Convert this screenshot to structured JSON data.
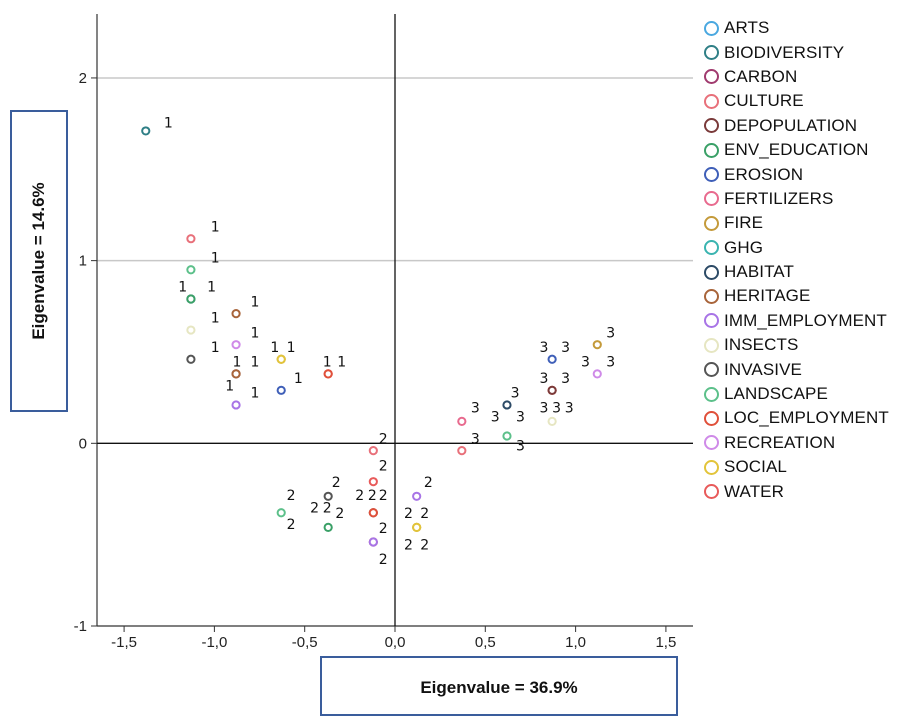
{
  "chart_data": {
    "type": "scatter",
    "xlabel": "Eigenvalue = 36.9%",
    "ylabel": "Eigenvalue = 14.6%",
    "xlim": [
      -1.65,
      1.65
    ],
    "ylim": [
      -1.0,
      2.35
    ],
    "x_ticks": [
      "-1,5",
      "-1,0",
      "-0,5",
      "0,0",
      "0,5",
      "1,0",
      "1,5"
    ],
    "y_ticks": [
      "-1",
      "0",
      "1",
      "2"
    ],
    "grid": "horizontal reference lines at y=1 and y=2",
    "reference_lines": "x=0 and y=0",
    "legend_position": "right",
    "series": [
      {
        "name": "ARTS",
        "color": "#4aa8e0"
      },
      {
        "name": "BIODIVERSITY",
        "color": "#2f7f86"
      },
      {
        "name": "CARBON",
        "color": "#a03a6e"
      },
      {
        "name": "CULTURE",
        "color": "#e8707a"
      },
      {
        "name": "DEPOPULATION",
        "color": "#7a3a3a"
      },
      {
        "name": "ENV_EDUCATION",
        "color": "#3aa067"
      },
      {
        "name": "EROSION",
        "color": "#3f5fb8"
      },
      {
        "name": "FERTILIZERS",
        "color": "#e86a8e"
      },
      {
        "name": "FIRE",
        "color": "#c49a3a"
      },
      {
        "name": "GHG",
        "color": "#3ab4b0"
      },
      {
        "name": "HABITAT",
        "color": "#2c4a66"
      },
      {
        "name": "HERITAGE",
        "color": "#a8643a"
      },
      {
        "name": "IMM_EMPLOYMENT",
        "color": "#a874e6"
      },
      {
        "name": "INSECTS",
        "color": "#e6e6c2"
      },
      {
        "name": "INVASIVE",
        "color": "#555555"
      },
      {
        "name": "LANDSCAPE",
        "color": "#5cc08a"
      },
      {
        "name": "LOC_EMPLOYMENT",
        "color": "#e0503a"
      },
      {
        "name": "RECREATION",
        "color": "#cf8ae8"
      },
      {
        "name": "SOCIAL",
        "color": "#e2c43a"
      },
      {
        "name": "WATER",
        "color": "#e85a5a"
      }
    ],
    "points": [
      {
        "x": -1.38,
        "y": 1.71,
        "label": "1",
        "color": "#2f7f86"
      },
      {
        "x": -1.13,
        "y": 1.12,
        "label": "1",
        "color": "#e8707a"
      },
      {
        "x": -1.13,
        "y": 0.95,
        "label": "1",
        "color": "#5cc08a"
      },
      {
        "x": -1.13,
        "y": 0.79,
        "label": "1",
        "color": "#2f7f86"
      },
      {
        "x": -1.13,
        "y": 0.79,
        "label": "1",
        "color": "#3aa067"
      },
      {
        "x": -1.13,
        "y": 0.62,
        "label": "1",
        "color": "#e6e6c2"
      },
      {
        "x": -1.13,
        "y": 0.46,
        "label": "1",
        "color": "#555555"
      },
      {
        "x": -0.88,
        "y": 0.71,
        "label": "1",
        "color": "#a8643a"
      },
      {
        "x": -0.88,
        "y": 0.54,
        "label": "1",
        "color": "#cf8ae8"
      },
      {
        "x": -0.88,
        "y": 0.38,
        "label": "1",
        "color": "#7a3a3a"
      },
      {
        "x": -0.88,
        "y": 0.38,
        "label": "1",
        "color": "#a8643a"
      },
      {
        "x": -0.88,
        "y": 0.21,
        "label": "1",
        "color": "#a874e6"
      },
      {
        "x": -0.63,
        "y": 0.46,
        "label": "1",
        "color": "#c49a3a"
      },
      {
        "x": -0.63,
        "y": 0.46,
        "label": "1",
        "color": "#e2c43a"
      },
      {
        "x": -0.63,
        "y": 0.29,
        "label": "1",
        "color": "#3f5fb8"
      },
      {
        "x": -0.37,
        "y": 0.38,
        "label": "1",
        "color": "#e85a5a"
      },
      {
        "x": -0.37,
        "y": 0.38,
        "label": "1",
        "color": "#e0503a"
      },
      {
        "x": -0.12,
        "y": -0.04,
        "label": "2",
        "color": "#e8707a"
      },
      {
        "x": -0.12,
        "y": -0.21,
        "label": "2",
        "color": "#e85a5a"
      },
      {
        "x": -0.12,
        "y": -0.38,
        "label": "2",
        "color": "#7a3a3a"
      },
      {
        "x": -0.12,
        "y": -0.38,
        "label": "2",
        "color": "#e0503a"
      },
      {
        "x": -0.12,
        "y": -0.54,
        "label": "2",
        "color": "#a03a6e"
      },
      {
        "x": -0.12,
        "y": -0.54,
        "label": "2",
        "color": "#a874e6"
      },
      {
        "x": -0.37,
        "y": -0.29,
        "label": "2",
        "color": "#555555"
      },
      {
        "x": -0.37,
        "y": -0.46,
        "label": "2",
        "color": "#3aa067"
      },
      {
        "x": -0.63,
        "y": -0.38,
        "label": "2",
        "color": "#5cc08a"
      },
      {
        "x": 0.12,
        "y": -0.29,
        "label": "2",
        "color": "#a874e6"
      },
      {
        "x": 0.12,
        "y": -0.46,
        "label": "2",
        "color": "#c49a3a"
      },
      {
        "x": 0.12,
        "y": -0.46,
        "label": "2",
        "color": "#e2c43a"
      },
      {
        "x": 0.37,
        "y": 0.12,
        "label": "3",
        "color": "#e86a8e"
      },
      {
        "x": 0.37,
        "y": -0.04,
        "label": "3",
        "color": "#e8707a"
      },
      {
        "x": 0.62,
        "y": 0.21,
        "label": "3",
        "color": "#2c4a66"
      },
      {
        "x": 0.62,
        "y": 0.04,
        "label": "3",
        "color": "#5cc08a"
      },
      {
        "x": 0.87,
        "y": 0.46,
        "label": "3",
        "color": "#3f5fb8"
      },
      {
        "x": 0.87,
        "y": 0.29,
        "label": "3",
        "color": "#e0503a"
      },
      {
        "x": 0.87,
        "y": 0.29,
        "label": "3",
        "color": "#7a3a3a"
      },
      {
        "x": 0.87,
        "y": 0.12,
        "label": "3",
        "color": "#e6e6c2"
      },
      {
        "x": 1.12,
        "y": 0.54,
        "label": "3",
        "color": "#c49a3a"
      },
      {
        "x": 1.12,
        "y": 0.38,
        "label": "3",
        "color": "#cf8ae8"
      }
    ],
    "annotations": [
      {
        "x": -1.28,
        "y": 1.73,
        "text": "1"
      },
      {
        "x": -1.02,
        "y": 1.16,
        "text": "1"
      },
      {
        "x": -1.02,
        "y": 0.99,
        "text": "1"
      },
      {
        "x": -1.2,
        "y": 0.83,
        "text": "1"
      },
      {
        "x": -1.04,
        "y": 0.83,
        "text": "1"
      },
      {
        "x": -1.02,
        "y": 0.66,
        "text": "1"
      },
      {
        "x": -1.02,
        "y": 0.5,
        "text": "1"
      },
      {
        "x": -0.8,
        "y": 0.75,
        "text": "1"
      },
      {
        "x": -0.8,
        "y": 0.58,
        "text": "1"
      },
      {
        "x": -0.9,
        "y": 0.42,
        "text": "1"
      },
      {
        "x": -0.8,
        "y": 0.42,
        "text": "1"
      },
      {
        "x": -0.94,
        "y": 0.29,
        "text": "1"
      },
      {
        "x": -0.8,
        "y": 0.25,
        "text": "1"
      },
      {
        "x": -0.69,
        "y": 0.5,
        "text": "1"
      },
      {
        "x": -0.6,
        "y": 0.5,
        "text": "1"
      },
      {
        "x": -0.56,
        "y": 0.33,
        "text": "1"
      },
      {
        "x": -0.4,
        "y": 0.42,
        "text": "1"
      },
      {
        "x": -0.32,
        "y": 0.42,
        "text": "1"
      },
      {
        "x": -0.09,
        "y": 0.0,
        "text": "2"
      },
      {
        "x": -0.09,
        "y": -0.15,
        "text": "2"
      },
      {
        "x": -0.22,
        "y": -0.31,
        "text": "2"
      },
      {
        "x": -0.15,
        "y": -0.31,
        "text": "2"
      },
      {
        "x": -0.09,
        "y": -0.31,
        "text": "2"
      },
      {
        "x": -0.09,
        "y": -0.49,
        "text": "2"
      },
      {
        "x": -0.09,
        "y": -0.66,
        "text": "2"
      },
      {
        "x": -0.35,
        "y": -0.24,
        "text": "2"
      },
      {
        "x": -0.47,
        "y": -0.38,
        "text": "2"
      },
      {
        "x": -0.4,
        "y": -0.38,
        "text": "2"
      },
      {
        "x": -0.33,
        "y": -0.41,
        "text": "2"
      },
      {
        "x": -0.6,
        "y": -0.31,
        "text": "2"
      },
      {
        "x": -0.6,
        "y": -0.47,
        "text": "2"
      },
      {
        "x": 0.16,
        "y": -0.24,
        "text": "2"
      },
      {
        "x": 0.05,
        "y": -0.41,
        "text": "2"
      },
      {
        "x": 0.14,
        "y": -0.41,
        "text": "2"
      },
      {
        "x": 0.05,
        "y": -0.58,
        "text": "2"
      },
      {
        "x": 0.14,
        "y": -0.58,
        "text": "2"
      },
      {
        "x": 0.42,
        "y": 0.17,
        "text": "3"
      },
      {
        "x": 0.42,
        "y": 0.0,
        "text": "3"
      },
      {
        "x": 0.53,
        "y": 0.12,
        "text": "3"
      },
      {
        "x": 0.64,
        "y": 0.25,
        "text": "3"
      },
      {
        "x": 0.67,
        "y": 0.12,
        "text": "3"
      },
      {
        "x": 0.67,
        "y": -0.04,
        "text": "3"
      },
      {
        "x": 0.8,
        "y": 0.5,
        "text": "3"
      },
      {
        "x": 0.92,
        "y": 0.5,
        "text": "3"
      },
      {
        "x": 0.8,
        "y": 0.33,
        "text": "3"
      },
      {
        "x": 0.92,
        "y": 0.33,
        "text": "3"
      },
      {
        "x": 0.8,
        "y": 0.17,
        "text": "3"
      },
      {
        "x": 0.87,
        "y": 0.17,
        "text": "3"
      },
      {
        "x": 0.94,
        "y": 0.17,
        "text": "3"
      },
      {
        "x": 1.03,
        "y": 0.42,
        "text": "3"
      },
      {
        "x": 1.17,
        "y": 0.58,
        "text": "3"
      },
      {
        "x": 1.17,
        "y": 0.42,
        "text": "3"
      }
    ]
  }
}
